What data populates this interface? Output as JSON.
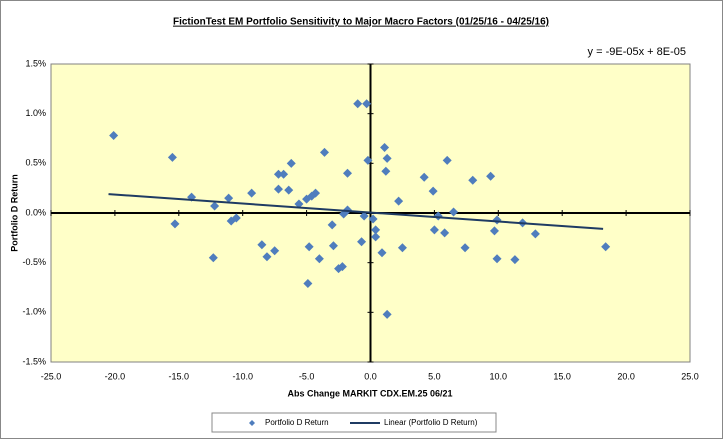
{
  "chart_data": {
    "type": "scatter",
    "title": "FictionTest EM Portfolio Sensitivity to Major Macro Factors (01/25/16 - 04/25/16)",
    "x_label": "Abs Change MARKIT CDX.EM.25 06/21",
    "y_label": "Portfolio D Return",
    "annotation": "y = -9E-05x + 8E-05",
    "xlim": [
      -25,
      25
    ],
    "xticks": [
      {
        "value": -25,
        "label": "-25.0"
      },
      {
        "value": -20,
        "label": "-20.0"
      },
      {
        "value": -15,
        "label": "-15.0"
      },
      {
        "value": -10,
        "label": "-10.0"
      },
      {
        "value": -5,
        "label": "-5.0"
      },
      {
        "value": 0,
        "label": "0.0"
      },
      {
        "value": 5,
        "label": "5.0"
      },
      {
        "value": 10,
        "label": "10.0"
      },
      {
        "value": 15,
        "label": "15.0"
      },
      {
        "value": 20,
        "label": "20.0"
      },
      {
        "value": 25,
        "label": "25.0"
      }
    ],
    "ylim": [
      -1.5,
      1.5
    ],
    "yticks": [
      {
        "value": -1.5,
        "label": "-1.5%"
      },
      {
        "value": -1.0,
        "label": "-1.0%"
      },
      {
        "value": -0.5,
        "label": "-0.5%"
      },
      {
        "value": 0,
        "label": "0.0%"
      },
      {
        "value": 0.5,
        "label": "0.5%"
      },
      {
        "value": 1.0,
        "label": "1.0%"
      },
      {
        "value": 1.5,
        "label": "1.5%"
      }
    ],
    "grid": false,
    "legend": "bottom",
    "plot_background": "#ffffc8",
    "series": [
      {
        "name": "Portfolio D Return",
        "color": "#4f7dbd",
        "x": [
          -20.1,
          -15.5,
          -15.3,
          -14.0,
          -12.2,
          -12.3,
          -11.1,
          -10.9,
          -10.5,
          -9.3,
          -8.5,
          -8.1,
          -7.5,
          -7.2,
          -7.2,
          -6.8,
          -6.4,
          -6.2,
          -5.6,
          -5.0,
          -4.8,
          -4.9,
          -4.6,
          -4.3,
          -4.0,
          -3.6,
          -3.0,
          -2.9,
          -2.5,
          -2.2,
          -2.1,
          -1.8,
          -1.8,
          -1.0,
          -0.7,
          -0.5,
          -0.3,
          -0.2,
          0.2,
          0.4,
          0.4,
          0.9,
          1.1,
          1.2,
          1.3,
          1.3,
          2.2,
          2.5,
          4.2,
          4.9,
          5.0,
          5.3,
          5.8,
          6.0,
          6.5,
          7.4,
          8.0,
          9.4,
          9.7,
          9.9,
          9.9,
          11.3,
          11.9,
          12.9,
          18.4
        ],
        "values": [
          0.78,
          0.56,
          -0.11,
          0.16,
          0.07,
          -0.45,
          0.15,
          -0.08,
          -0.05,
          0.2,
          -0.32,
          -0.44,
          -0.38,
          0.24,
          0.39,
          0.39,
          0.23,
          0.5,
          0.09,
          0.14,
          -0.34,
          -0.71,
          0.17,
          0.2,
          -0.46,
          0.61,
          -0.12,
          -0.33,
          -0.56,
          -0.54,
          -0.01,
          0.4,
          0.03,
          1.1,
          -0.29,
          -0.03,
          1.1,
          0.53,
          -0.06,
          -0.24,
          -0.17,
          -0.4,
          0.66,
          0.42,
          0.55,
          -1.02,
          0.12,
          -0.35,
          0.36,
          0.22,
          -0.17,
          -0.03,
          -0.2,
          0.53,
          0.01,
          -0.35,
          0.33,
          0.37,
          -0.18,
          -0.07,
          -0.46,
          -0.47,
          -0.1,
          -0.21,
          -0.34
        ]
      }
    ],
    "trendline": {
      "name": "Linear (Portfolio D Return)",
      "color": "#1f3b63",
      "x": [
        -20.5,
        18.2
      ],
      "values": [
        0.19,
        -0.16
      ]
    }
  }
}
